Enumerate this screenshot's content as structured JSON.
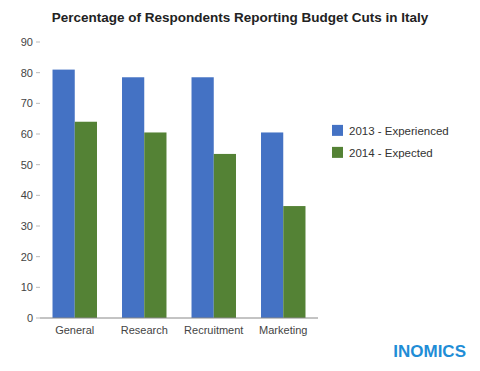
{
  "chart_data": {
    "type": "bar",
    "title": "Percentage of Respondents Reporting Budget Cuts in Italy",
    "categories": [
      "General",
      "Research",
      "Recruitment",
      "Marketing"
    ],
    "series": [
      {
        "name": "2013 - Experienced",
        "color": "#4472C4",
        "values": [
          81,
          78.5,
          78.5,
          60.5
        ]
      },
      {
        "name": "2014 - Expected",
        "color": "#548235",
        "values": [
          64,
          60.5,
          53.5,
          36.5
        ]
      }
    ],
    "ylim": [
      0,
      90
    ],
    "yticks": [
      0,
      10,
      20,
      30,
      40,
      50,
      60,
      70,
      80,
      90
    ],
    "grid": false,
    "legend": "right",
    "annotations": [
      {
        "text": "INOMICS",
        "color": "#1F8DD6"
      }
    ]
  }
}
